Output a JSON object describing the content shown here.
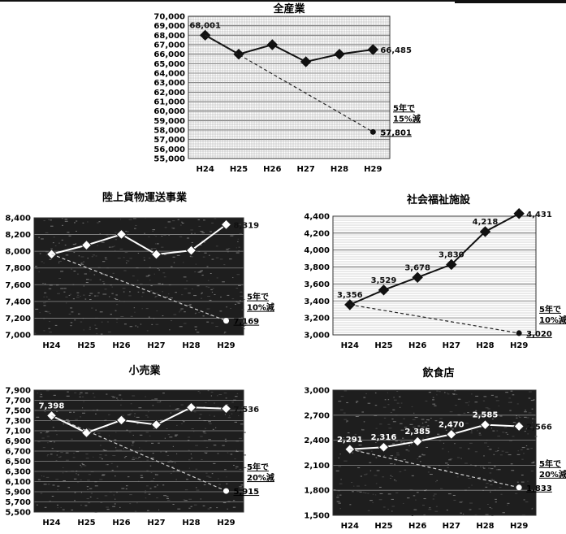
{
  "chart_data": [
    {
      "id": "all",
      "type": "line",
      "title": "全産業",
      "categories": [
        "H24",
        "H25",
        "H26",
        "H27",
        "H28",
        "H29"
      ],
      "ylim": [
        55000,
        70000
      ],
      "ystep": 1000,
      "y_ticks": [
        "70,000",
        "69,000",
        "68,000",
        "67,000",
        "66,000",
        "65,000",
        "64,000",
        "63,000",
        "62,000",
        "61,000",
        "60,000",
        "59,000",
        "58,000",
        "57,000",
        "56,000",
        "55,000"
      ],
      "dark_background": false,
      "series": [
        {
          "values": [
            68001,
            66000,
            67000,
            65200,
            66000,
            66485
          ],
          "labels": [
            "68,001",
            "",
            "",
            "",
            "",
            "66,485"
          ]
        }
      ],
      "target": {
        "value": 57801,
        "label": "57,801"
      },
      "note": [
        "5年で",
        "15%減"
      ]
    },
    {
      "id": "trucking",
      "type": "line",
      "title": "陸上貨物運送事業",
      "categories": [
        "H24",
        "H25",
        "H26",
        "H27",
        "H28",
        "H29"
      ],
      "ylim": [
        7000,
        8400
      ],
      "ystep": 200,
      "y_ticks": [
        "8,400",
        "8,200",
        "8,000",
        "7,800",
        "7,600",
        "7,400",
        "7,200",
        "7,000"
      ],
      "dark_background": true,
      "series": [
        {
          "values": [
            7965,
            8073,
            8202,
            7963,
            8010,
            8319
          ],
          "labels": [
            "",
            "",
            "",
            "",
            "",
            "8,319"
          ]
        }
      ],
      "target": {
        "value": 7169,
        "label": "7,169"
      },
      "note": [
        "5年で",
        "10%減"
      ]
    },
    {
      "id": "welfare",
      "type": "line",
      "title": "社会福祉施設",
      "categories": [
        "H24",
        "H25",
        "H26",
        "H27",
        "H28",
        "H29"
      ],
      "ylim": [
        3000,
        4400
      ],
      "ystep": 200,
      "y_ticks": [
        "4,400",
        "4,200",
        "4,000",
        "3,800",
        "3,600",
        "3,400",
        "3,200",
        "3,000"
      ],
      "dark_background": false,
      "series": [
        {
          "values": [
            3356,
            3529,
            3678,
            3830,
            4218,
            4431
          ],
          "labels": [
            "3,356",
            "3,529",
            "3,678",
            "3,830",
            "4,218",
            "4,431"
          ]
        }
      ],
      "target": {
        "value": 3020,
        "label": "3,020"
      },
      "note": [
        "5年で",
        "10%減"
      ]
    },
    {
      "id": "retail",
      "type": "line",
      "title": "小売業",
      "categories": [
        "H24",
        "H25",
        "H26",
        "H27",
        "H28",
        "H29"
      ],
      "ylim": [
        5500,
        7900
      ],
      "ystep": 200,
      "y_ticks": [
        "7,900",
        "7,700",
        "7,500",
        "7,300",
        "7,100",
        "6,900",
        "6,700",
        "6,500",
        "6,300",
        "6,100",
        "5,900",
        "5,700",
        "5,500"
      ],
      "dark_background": true,
      "series": [
        {
          "values": [
            7398,
            7060,
            7310,
            7220,
            7560,
            7536
          ],
          "labels": [
            "7,398",
            "",
            "",
            "",
            "",
            "7,536"
          ]
        }
      ],
      "target": {
        "value": 5915,
        "label": "5,915"
      },
      "note": [
        "5年で",
        "20%減"
      ]
    },
    {
      "id": "restaurant",
      "type": "line",
      "title": "飲食店",
      "categories": [
        "H24",
        "H25",
        "H26",
        "H27",
        "H28",
        "H29"
      ],
      "ylim": [
        1500,
        3000
      ],
      "ystep": 300,
      "y_ticks": [
        "3,000",
        "2,700",
        "2,400",
        "2,100",
        "1,800",
        "1,500"
      ],
      "dark_background": true,
      "series": [
        {
          "values": [
            2291,
            2316,
            2385,
            2470,
            2585,
            2566
          ],
          "labels": [
            "2,291",
            "2,316",
            "2,385",
            "2,470",
            "2,585",
            "2,566"
          ]
        }
      ],
      "target": {
        "value": 1833,
        "label": "1,833"
      },
      "note": [
        "5年で",
        "20%減"
      ]
    }
  ]
}
